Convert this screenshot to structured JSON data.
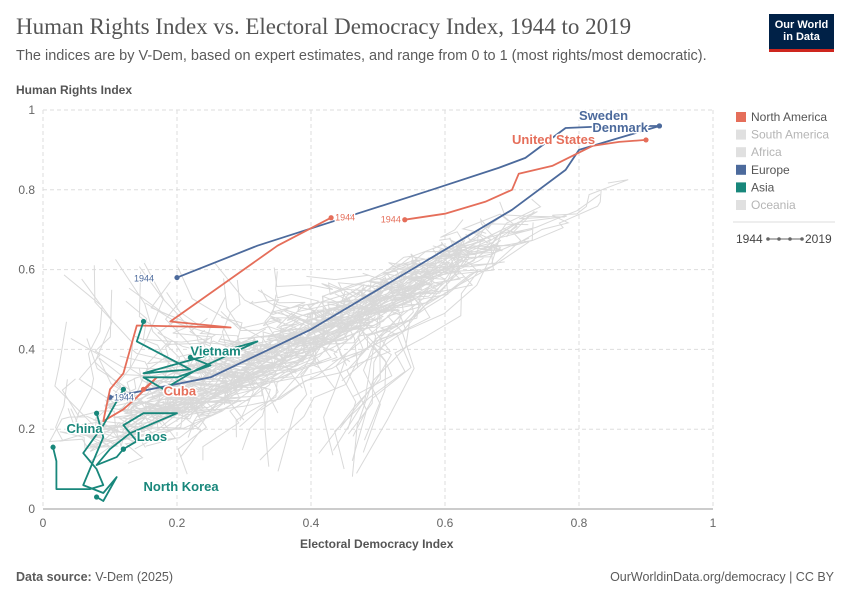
{
  "header": {
    "title": "Human Rights Index vs. Electoral Democracy Index, 1944 to 2019",
    "subtitle": "The indices are by V-Dem, based on expert estimates, and range from 0 to 1 (most rights/most democratic).",
    "logo_line1": "Our World",
    "logo_line2": "in Data"
  },
  "footer": {
    "source_label": "Data source:",
    "source_value": "V-Dem (2025)",
    "url": "OurWorldinData.org/democracy | CC BY"
  },
  "timeline": {
    "start": "1944",
    "end": "2019"
  },
  "colors": {
    "north_america": "#e56e5a",
    "europe": "#4c6a9c",
    "asia": "#18877b",
    "background_lines": "#d9d9d9",
    "grid": "#dddddd"
  },
  "chart_data": {
    "type": "scatter",
    "subtype": "connected-scatter",
    "title": "Human Rights Index vs. Electoral Democracy Index, 1944 to 2019",
    "xlabel": "Electoral Democracy Index",
    "ylabel": "Human Rights Index",
    "xlim": [
      0,
      1
    ],
    "ylim": [
      0,
      1
    ],
    "xticks": [
      "0",
      "0.2",
      "0.4",
      "0.6",
      "0.8",
      "1"
    ],
    "yticks": [
      "0",
      "0.2",
      "0.4",
      "0.6",
      "0.8",
      "1"
    ],
    "grid": true,
    "legend_position": "right",
    "legend": [
      {
        "name": "North America",
        "color": "#e56e5a",
        "active": true
      },
      {
        "name": "South America",
        "color": "#e0e0e0",
        "active": false
      },
      {
        "name": "Africa",
        "color": "#e0e0e0",
        "active": false
      },
      {
        "name": "Europe",
        "color": "#4c6a9c",
        "active": true
      },
      {
        "name": "Asia",
        "color": "#18877b",
        "active": true
      },
      {
        "name": "Oceania",
        "color": "#e0e0e0",
        "active": false
      }
    ],
    "series": [
      {
        "name": "Sweden",
        "region": "Europe",
        "color": "#4c6a9c",
        "points": [
          [
            0.2,
            0.58
          ],
          [
            0.32,
            0.66
          ],
          [
            0.45,
            0.73
          ],
          [
            0.58,
            0.8
          ],
          [
            0.68,
            0.855
          ],
          [
            0.72,
            0.88
          ],
          [
            0.78,
            0.955
          ],
          [
            0.85,
            0.96
          ],
          [
            0.9,
            0.96
          ],
          [
            0.92,
            0.96
          ]
        ]
      },
      {
        "name": "Denmark",
        "region": "Europe",
        "color": "#4c6a9c",
        "points": [
          [
            0.1,
            0.28
          ],
          [
            0.25,
            0.33
          ],
          [
            0.4,
            0.45
          ],
          [
            0.55,
            0.6
          ],
          [
            0.7,
            0.75
          ],
          [
            0.78,
            0.85
          ],
          [
            0.8,
            0.9
          ],
          [
            0.86,
            0.93
          ],
          [
            0.9,
            0.95
          ],
          [
            0.92,
            0.96
          ]
        ]
      },
      {
        "name": "United States",
        "region": "North America",
        "color": "#e56e5a",
        "points": [
          [
            0.54,
            0.725
          ],
          [
            0.6,
            0.74
          ],
          [
            0.66,
            0.77
          ],
          [
            0.7,
            0.8
          ],
          [
            0.71,
            0.84
          ],
          [
            0.76,
            0.86
          ],
          [
            0.82,
            0.91
          ],
          [
            0.86,
            0.92
          ],
          [
            0.9,
            0.925
          ]
        ]
      },
      {
        "name": "Cuba",
        "region": "North America",
        "color": "#e56e5a",
        "points": [
          [
            0.43,
            0.73
          ],
          [
            0.35,
            0.66
          ],
          [
            0.19,
            0.47
          ],
          [
            0.28,
            0.455
          ],
          [
            0.14,
            0.46
          ],
          [
            0.12,
            0.34
          ],
          [
            0.1,
            0.3
          ],
          [
            0.09,
            0.22
          ],
          [
            0.12,
            0.25
          ],
          [
            0.14,
            0.28
          ],
          [
            0.17,
            0.33
          ],
          [
            0.15,
            0.3
          ]
        ]
      },
      {
        "name": "Vietnam",
        "region": "Asia",
        "color": "#18877b",
        "points": [
          [
            0.15,
            0.47
          ],
          [
            0.14,
            0.42
          ],
          [
            0.22,
            0.35
          ],
          [
            0.15,
            0.34
          ],
          [
            0.32,
            0.42
          ],
          [
            0.23,
            0.35
          ],
          [
            0.18,
            0.3
          ],
          [
            0.15,
            0.33
          ],
          [
            0.2,
            0.33
          ],
          [
            0.25,
            0.36
          ],
          [
            0.22,
            0.38
          ]
        ]
      },
      {
        "name": "China",
        "region": "Asia",
        "color": "#18877b",
        "points": [
          [
            0.015,
            0.155
          ],
          [
            0.02,
            0.12
          ],
          [
            0.02,
            0.05
          ],
          [
            0.07,
            0.05
          ],
          [
            0.09,
            0.06
          ],
          [
            0.08,
            0.1
          ],
          [
            0.06,
            0.14
          ],
          [
            0.09,
            0.21
          ],
          [
            0.12,
            0.3
          ]
        ]
      },
      {
        "name": "Laos",
        "region": "Asia",
        "color": "#18877b",
        "points": [
          [
            0.12,
            0.15
          ],
          [
            0.14,
            0.17
          ],
          [
            0.12,
            0.21
          ],
          [
            0.15,
            0.24
          ],
          [
            0.2,
            0.24
          ],
          [
            0.13,
            0.19
          ],
          [
            0.1,
            0.15
          ],
          [
            0.08,
            0.11
          ],
          [
            0.11,
            0.13
          ],
          [
            0.12,
            0.15
          ]
        ]
      },
      {
        "name": "North Korea",
        "region": "Asia",
        "color": "#18877b",
        "points": [
          [
            0.08,
            0.24
          ],
          [
            0.09,
            0.18
          ],
          [
            0.07,
            0.1
          ],
          [
            0.06,
            0.06
          ],
          [
            0.09,
            0.04
          ],
          [
            0.11,
            0.08
          ],
          [
            0.09,
            0.02
          ],
          [
            0.08,
            0.03
          ]
        ]
      }
    ],
    "annotations": [
      {
        "text": "1944",
        "x": 0.2,
        "y": 0.58,
        "series": "Sweden"
      },
      {
        "text": "1944",
        "x": 0.43,
        "y": 0.73,
        "series": "Cuba"
      },
      {
        "text": "1944",
        "x": 0.54,
        "y": 0.725,
        "series": "United States"
      },
      {
        "text": "1944",
        "x": 0.1,
        "y": 0.28,
        "series": "Denmark"
      }
    ],
    "labels": [
      {
        "text": "Sweden",
        "x": 0.8,
        "y": 0.975,
        "color": "#4c6a9c"
      },
      {
        "text": "Denmark",
        "x": 0.82,
        "y": 0.945,
        "color": "#4c6a9c"
      },
      {
        "text": "United States",
        "x": 0.7,
        "y": 0.915,
        "color": "#e56e5a"
      },
      {
        "text": "Cuba",
        "x": 0.18,
        "y": 0.285,
        "color": "#e56e5a"
      },
      {
        "text": "Vietnam",
        "x": 0.22,
        "y": 0.385,
        "color": "#18877b"
      },
      {
        "text": "China",
        "x": 0.035,
        "y": 0.19,
        "color": "#18877b"
      },
      {
        "text": "Laos",
        "x": 0.14,
        "y": 0.17,
        "color": "#18877b"
      },
      {
        "text": "North Korea",
        "x": 0.15,
        "y": 0.045,
        "color": "#18877b"
      }
    ]
  }
}
